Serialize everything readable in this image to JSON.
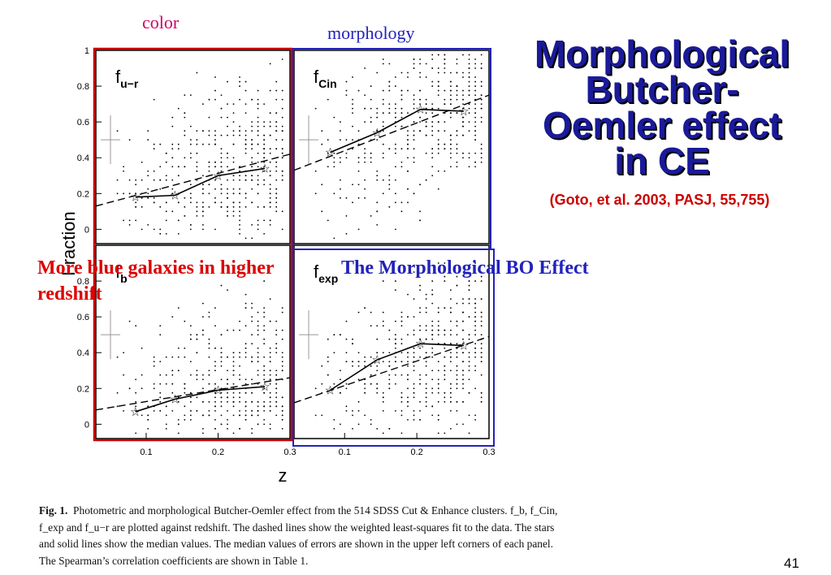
{
  "slide": {
    "title_lines": [
      "Morphological",
      "Butcher-",
      "Oemler effect",
      "in CE"
    ],
    "reference": "(Goto, et al. 2003, PASJ, 55,755)",
    "color_label": "color",
    "morphology_label": "morphology",
    "blue_note": "More blue galaxies in higher redshift",
    "bo_note": "The Morphological BO Effect",
    "caption_bold": "Fig. 1.",
    "caption_text": "Photometric and morphological Butcher-Oemler effect from the 514 SDSS Cut & Enhance clusters. f_b, f_Cin, f_exp and f_u−r are plotted against redshift. The dashed lines show the weighted least-squares fit to the data. The stars and solid lines show the median values. The median values of errors are shown in the upper left corners of each panel. The Spearman’s correlation coefficients are shown in Table 1.",
    "page_number": "41",
    "colors": {
      "title": "#1a1a9a",
      "reference": "#cc0000",
      "color_label": "#cc0066",
      "morphology_label": "#2222bb",
      "red_box": "#cc0000",
      "blue_box": "#2222bb"
    }
  },
  "chart_data": [
    {
      "type": "scatter",
      "panel": "top-left",
      "label": "f_u−r",
      "x_ticks": [],
      "y_ticks": [
        "0",
        "0.2",
        "0.4",
        "0.6",
        "0.8",
        "1"
      ],
      "xlim": [
        0.03,
        0.3
      ],
      "ylim": [
        -0.08,
        1.0
      ],
      "median_x": [
        0.085,
        0.14,
        0.2,
        0.265
      ],
      "median_y": [
        0.18,
        0.19,
        0.3,
        0.34
      ],
      "fit_line": [
        [
          0.03,
          0.13
        ],
        [
          0.3,
          0.42
        ]
      ]
    },
    {
      "type": "scatter",
      "panel": "top-right",
      "label": "f_Cin",
      "x_ticks": [],
      "y_ticks": [],
      "xlim": [
        0.03,
        0.3
      ],
      "ylim": [
        -0.08,
        1.0
      ],
      "median_x": [
        0.08,
        0.145,
        0.205,
        0.265
      ],
      "median_y": [
        0.43,
        0.54,
        0.67,
        0.66
      ],
      "fit_line": [
        [
          0.03,
          0.33
        ],
        [
          0.3,
          0.75
        ]
      ]
    },
    {
      "type": "scatter",
      "panel": "bottom-left",
      "label": "f_b",
      "x_ticks": [
        "0.1",
        "0.2",
        "0.3"
      ],
      "y_ticks": [
        "0",
        "0.2",
        "0.4",
        "0.6",
        "0.8"
      ],
      "xlim": [
        0.03,
        0.3
      ],
      "ylim": [
        -0.08,
        1.0
      ],
      "median_x": [
        0.085,
        0.14,
        0.2,
        0.265
      ],
      "median_y": [
        0.07,
        0.14,
        0.19,
        0.21
      ],
      "fit_line": [
        [
          0.03,
          0.08
        ],
        [
          0.3,
          0.26
        ]
      ]
    },
    {
      "type": "scatter",
      "panel": "bottom-right",
      "label": "f_exp",
      "x_ticks": [
        "0.1",
        "0.2",
        "0.3"
      ],
      "y_ticks": [],
      "xlim": [
        0.03,
        0.3
      ],
      "ylim": [
        -0.08,
        1.0
      ],
      "median_x": [
        0.08,
        0.145,
        0.205,
        0.265
      ],
      "median_y": [
        0.19,
        0.36,
        0.45,
        0.44
      ],
      "fit_line": [
        [
          0.03,
          0.12
        ],
        [
          0.3,
          0.49
        ]
      ]
    }
  ],
  "axes": {
    "xlabel": "z",
    "ylabel": "Fraction"
  }
}
